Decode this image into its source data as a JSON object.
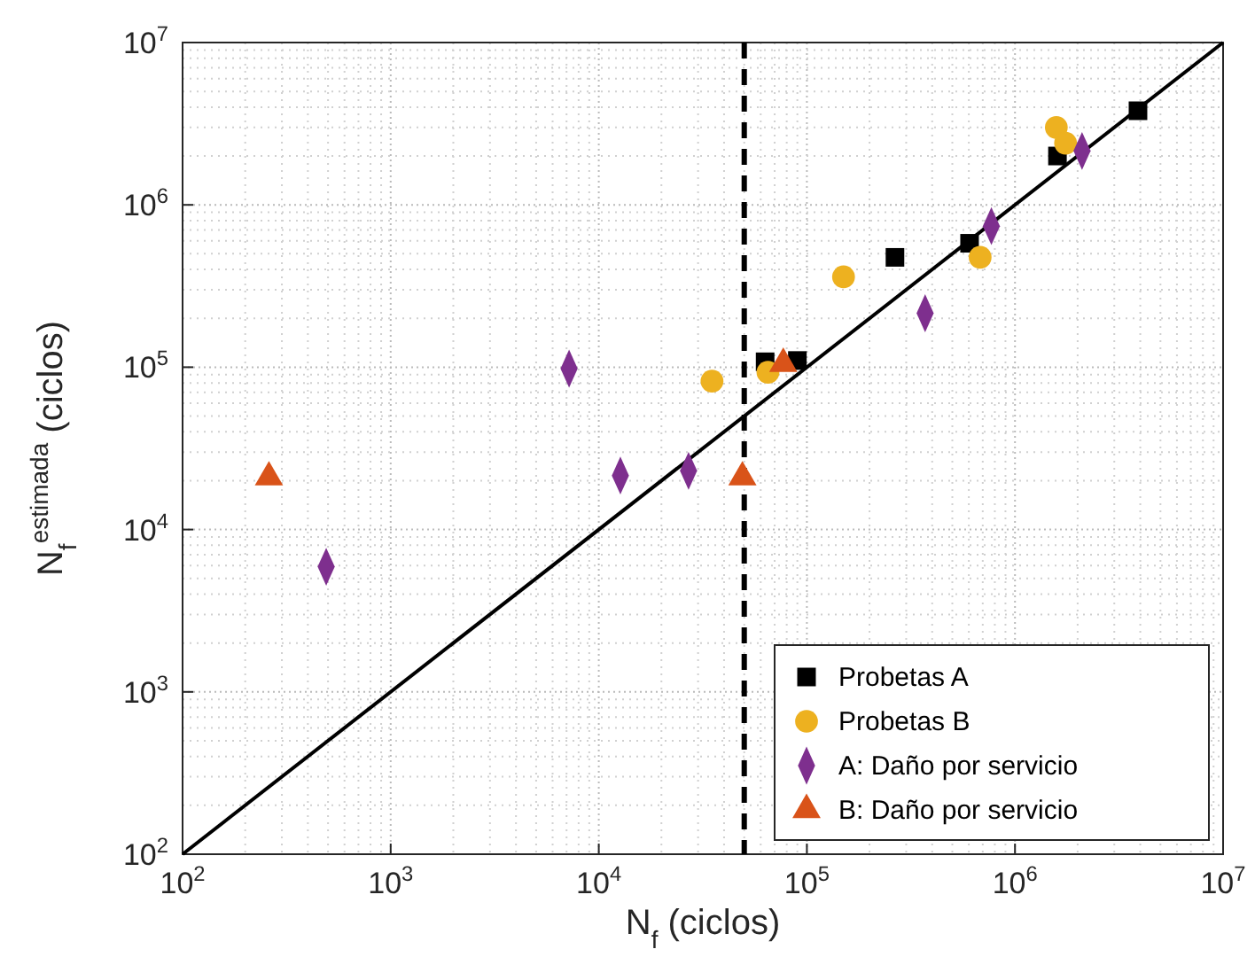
{
  "chart_data": {
    "type": "scatter",
    "xlabel": "N$_{f}$ (ciclos)",
    "ylabel": "N$_{f}$$^{estimada}$ (ciclos)",
    "log": "xy",
    "grid": true,
    "legend": "bottom right",
    "xlim": [
      100,
      10000000
    ],
    "ylim": [
      100,
      10000000
    ],
    "xticks": [
      {
        "value": 100,
        "label": "10$^{2}$"
      },
      {
        "value": 1000,
        "label": "10$^{3}$"
      },
      {
        "value": 10000,
        "label": "10$^{4}$"
      },
      {
        "value": 100000,
        "label": "10$^{5}$"
      },
      {
        "value": 1000000,
        "label": "10$^{6}$"
      },
      {
        "value": 10000000,
        "label": "10$^{7}$"
      }
    ],
    "yticks": [
      {
        "value": 100,
        "label": "10$^{2}$"
      },
      {
        "value": 1000,
        "label": "10$^{3}$"
      },
      {
        "value": 10000,
        "label": "10$^{4}$"
      },
      {
        "value": 100000,
        "label": "10$^{5}$"
      },
      {
        "value": 1000000,
        "label": "10$^{6}$"
      },
      {
        "value": 10000000,
        "label": "10$^{7}$"
      }
    ],
    "ref_lines": [
      {
        "axis": "x",
        "value": 50000,
        "color": "#000000",
        "line_style": "dashed"
      }
    ],
    "series": [
      {
        "type": "line",
        "color": "#000000",
        "marker": "none",
        "line_style": "solid",
        "x": [
          100,
          10000000
        ],
        "values": [
          100,
          10000000
        ]
      },
      {
        "name": "Probetas A",
        "color": "#000000",
        "marker": "square",
        "x": [
          63000,
          90000,
          265000,
          605000,
          1600000,
          3900000
        ],
        "values": [
          108000,
          110000,
          475000,
          580000,
          2000000,
          3800000
        ]
      },
      {
        "name": "Probetas B",
        "color": "#edb120",
        "marker": "circle",
        "x": [
          35000,
          65000,
          150000,
          680000,
          1580000,
          1750000
        ],
        "values": [
          82000,
          93000,
          360000,
          475000,
          3000000,
          2400000
        ]
      },
      {
        "name": "A: Daño por servicio",
        "color": "#7e2f8e",
        "marker": "diamond",
        "x": [
          490,
          7200,
          12700,
          27000,
          370000,
          770000,
          2100000
        ],
        "values": [
          5900,
          98000,
          21500,
          23000,
          215000,
          740000,
          2150000
        ]
      },
      {
        "name": "B: Daño por servicio",
        "color": "#d95319",
        "marker": "triangle",
        "x": [
          260,
          49000,
          77000
        ],
        "values": [
          21000,
          21000,
          105000
        ]
      }
    ]
  }
}
